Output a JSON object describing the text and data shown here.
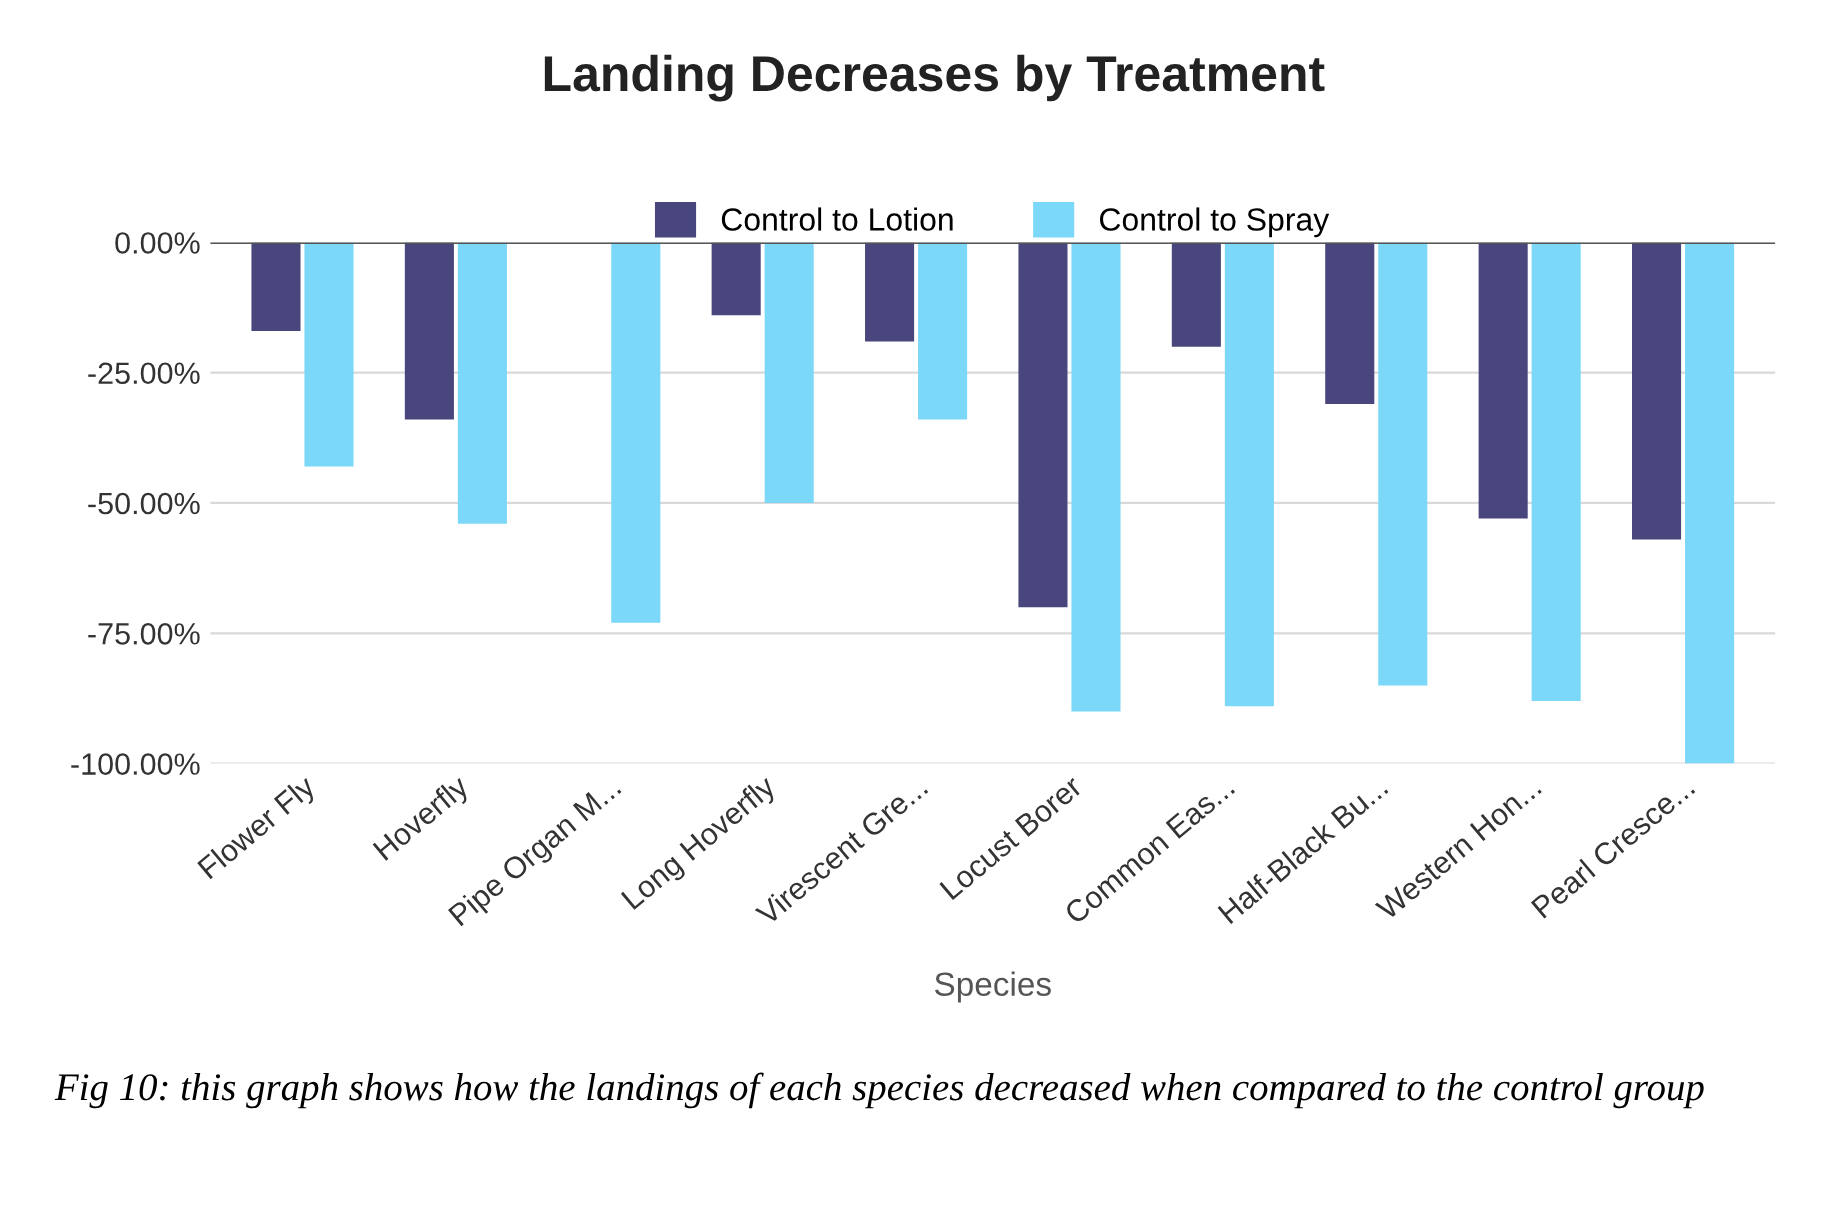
{
  "chart_data": {
    "type": "bar",
    "title": "Landing Decreases by Treatment",
    "xlabel": "Species",
    "categories": [
      "Flower Fly",
      "Hoverfly",
      "Pipe Organ M...",
      "Long Hoverfly",
      "Virescent Gre...",
      "Locust Borer",
      "Common Eas...",
      "Half-Black Bu...",
      "Western Hon...",
      "Pearl Cresce..."
    ],
    "series": [
      {
        "name": "Control to Lotion",
        "color": "#48467c",
        "values": [
          -17,
          -34,
          0,
          -14,
          -19,
          -70,
          -20,
          -31,
          -53,
          -57
        ]
      },
      {
        "name": "Control to Spray",
        "color": "#7bd8f8",
        "values": [
          -43,
          -54,
          -73,
          -50,
          -34,
          -90,
          -89,
          -85,
          -88,
          -100
        ]
      }
    ],
    "ylim": [
      -100,
      0
    ],
    "yticks": [
      {
        "value": 0,
        "label": "0.00%"
      },
      {
        "value": -25,
        "label": "-25.00%"
      },
      {
        "value": -50,
        "label": "-50.00%"
      },
      {
        "value": -75,
        "label": "-75.00%"
      },
      {
        "value": -100,
        "label": "-100.00%"
      }
    ],
    "grid": "y",
    "legend": "top",
    "annotations": [
      "Fig 10: this graph shows how the landings of each species decreased when compared to the control group"
    ]
  }
}
